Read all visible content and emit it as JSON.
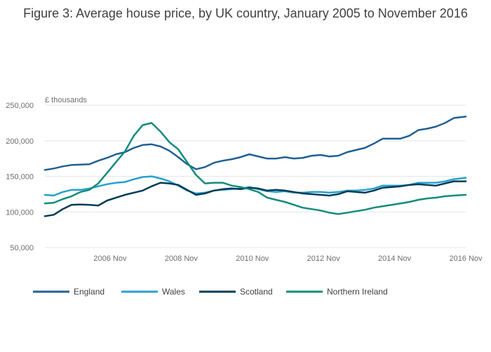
{
  "chart_data": {
    "type": "line",
    "title": "Figure 3: Average house price, by UK country, January 2005 to November 2016",
    "unit_label": "£ thousands",
    "y_ticks": [
      50000,
      100000,
      150000,
      200000,
      250000
    ],
    "y_tick_labels": [
      "50,000",
      "100,000",
      "150,000",
      "200,000",
      "250,000"
    ],
    "ylim": [
      50000,
      250000
    ],
    "x_ticks": [
      "2006-11",
      "2008-11",
      "2010-11",
      "2012-11",
      "2014-11",
      "2016-11"
    ],
    "x_tick_labels": [
      "2006 Nov",
      "2008 Nov",
      "2010 Nov",
      "2012 Nov",
      "2014 Nov",
      "2016 Nov"
    ],
    "x_range": [
      "2005-01",
      "2016-11"
    ],
    "grid": "horizontal",
    "legend_position": "bottom",
    "series": [
      {
        "name": "England",
        "color": "#206095",
        "points": [
          [
            "2005-01",
            159000
          ],
          [
            "2005-04",
            161000
          ],
          [
            "2005-07",
            164000
          ],
          [
            "2005-10",
            166000
          ],
          [
            "2006-01",
            166500
          ],
          [
            "2006-04",
            167000
          ],
          [
            "2006-07",
            172000
          ],
          [
            "2006-10",
            176000
          ],
          [
            "2007-01",
            181000
          ],
          [
            "2007-04",
            184000
          ],
          [
            "2007-07",
            190000
          ],
          [
            "2007-10",
            194000
          ],
          [
            "2008-01",
            195000
          ],
          [
            "2008-04",
            192000
          ],
          [
            "2008-07",
            186000
          ],
          [
            "2008-10",
            177000
          ],
          [
            "2009-01",
            167000
          ],
          [
            "2009-04",
            160000
          ],
          [
            "2009-07",
            163000
          ],
          [
            "2009-10",
            169000
          ],
          [
            "2010-01",
            172000
          ],
          [
            "2010-04",
            174000
          ],
          [
            "2010-07",
            177000
          ],
          [
            "2010-10",
            181000
          ],
          [
            "2011-01",
            178000
          ],
          [
            "2011-04",
            175000
          ],
          [
            "2011-07",
            175000
          ],
          [
            "2011-10",
            177000
          ],
          [
            "2012-01",
            175000
          ],
          [
            "2012-04",
            176000
          ],
          [
            "2012-07",
            179000
          ],
          [
            "2012-10",
            180000
          ],
          [
            "2013-01",
            178000
          ],
          [
            "2013-04",
            179000
          ],
          [
            "2013-07",
            184000
          ],
          [
            "2013-10",
            187000
          ],
          [
            "2014-01",
            190000
          ],
          [
            "2014-04",
            196000
          ],
          [
            "2014-07",
            203000
          ],
          [
            "2014-10",
            203000
          ],
          [
            "2015-01",
            203000
          ],
          [
            "2015-04",
            207000
          ],
          [
            "2015-07",
            215000
          ],
          [
            "2015-10",
            217000
          ],
          [
            "2016-01",
            220000
          ],
          [
            "2016-04",
            225000
          ],
          [
            "2016-07",
            232000
          ],
          [
            "2016-11",
            234000
          ]
        ]
      },
      {
        "name": "Wales",
        "color": "#27a0cc",
        "points": [
          [
            "2005-01",
            124000
          ],
          [
            "2005-04",
            123000
          ],
          [
            "2005-07",
            128000
          ],
          [
            "2005-10",
            131000
          ],
          [
            "2006-01",
            131000
          ],
          [
            "2006-04",
            133000
          ],
          [
            "2006-07",
            136000
          ],
          [
            "2006-10",
            139000
          ],
          [
            "2007-01",
            141000
          ],
          [
            "2007-04",
            142000
          ],
          [
            "2007-07",
            146000
          ],
          [
            "2007-10",
            149000
          ],
          [
            "2008-01",
            150000
          ],
          [
            "2008-04",
            147000
          ],
          [
            "2008-07",
            143000
          ],
          [
            "2008-10",
            137000
          ],
          [
            "2009-01",
            130000
          ],
          [
            "2009-04",
            126000
          ],
          [
            "2009-07",
            127000
          ],
          [
            "2009-10",
            130000
          ],
          [
            "2010-01",
            131000
          ],
          [
            "2010-04",
            132000
          ],
          [
            "2010-07",
            133000
          ],
          [
            "2010-10",
            135000
          ],
          [
            "2011-01",
            132000
          ],
          [
            "2011-04",
            129000
          ],
          [
            "2011-07",
            128000
          ],
          [
            "2011-10",
            129000
          ],
          [
            "2012-01",
            127000
          ],
          [
            "2012-04",
            127000
          ],
          [
            "2012-07",
            128000
          ],
          [
            "2012-10",
            128000
          ],
          [
            "2013-01",
            127000
          ],
          [
            "2013-04",
            128000
          ],
          [
            "2013-07",
            130000
          ],
          [
            "2013-10",
            130000
          ],
          [
            "2014-01",
            131000
          ],
          [
            "2014-04",
            133000
          ],
          [
            "2014-07",
            137000
          ],
          [
            "2014-10",
            137000
          ],
          [
            "2015-01",
            137000
          ],
          [
            "2015-04",
            138000
          ],
          [
            "2015-07",
            141000
          ],
          [
            "2015-10",
            141000
          ],
          [
            "2016-01",
            141000
          ],
          [
            "2016-04",
            143000
          ],
          [
            "2016-07",
            146000
          ],
          [
            "2016-11",
            148000
          ]
        ]
      },
      {
        "name": "Scotland",
        "color": "#003c57",
        "points": [
          [
            "2005-01",
            94000
          ],
          [
            "2005-04",
            96000
          ],
          [
            "2005-07",
            104000
          ],
          [
            "2005-10",
            110000
          ],
          [
            "2006-01",
            110500
          ],
          [
            "2006-04",
            110000
          ],
          [
            "2006-07",
            109000
          ],
          [
            "2006-10",
            116000
          ],
          [
            "2007-01",
            120000
          ],
          [
            "2007-04",
            124000
          ],
          [
            "2007-07",
            127000
          ],
          [
            "2007-10",
            130000
          ],
          [
            "2008-01",
            136000
          ],
          [
            "2008-04",
            141000
          ],
          [
            "2008-07",
            140000
          ],
          [
            "2008-10",
            138000
          ],
          [
            "2009-01",
            131000
          ],
          [
            "2009-04",
            124000
          ],
          [
            "2009-07",
            126000
          ],
          [
            "2009-10",
            130000
          ],
          [
            "2010-01",
            132000
          ],
          [
            "2010-04",
            133000
          ],
          [
            "2010-07",
            132000
          ],
          [
            "2010-10",
            134000
          ],
          [
            "2011-01",
            133000
          ],
          [
            "2011-04",
            130000
          ],
          [
            "2011-07",
            131000
          ],
          [
            "2011-10",
            130000
          ],
          [
            "2012-01",
            128000
          ],
          [
            "2012-04",
            126000
          ],
          [
            "2012-07",
            125000
          ],
          [
            "2012-10",
            124000
          ],
          [
            "2013-01",
            123000
          ],
          [
            "2013-04",
            125000
          ],
          [
            "2013-07",
            129000
          ],
          [
            "2013-10",
            128000
          ],
          [
            "2014-01",
            127000
          ],
          [
            "2014-04",
            130000
          ],
          [
            "2014-07",
            134000
          ],
          [
            "2014-10",
            135000
          ],
          [
            "2015-01",
            136000
          ],
          [
            "2015-04",
            138000
          ],
          [
            "2015-07",
            139000
          ],
          [
            "2015-10",
            138000
          ],
          [
            "2016-01",
            137000
          ],
          [
            "2016-04",
            140000
          ],
          [
            "2016-07",
            143000
          ],
          [
            "2016-11",
            143000
          ]
        ]
      },
      {
        "name": "Northern Ireland",
        "color": "#118c7b",
        "points": [
          [
            "2005-01",
            112000
          ],
          [
            "2005-04",
            113000
          ],
          [
            "2005-07",
            118000
          ],
          [
            "2005-10",
            122000
          ],
          [
            "2006-01",
            128000
          ],
          [
            "2006-04",
            131000
          ],
          [
            "2006-07",
            140000
          ],
          [
            "2006-10",
            155000
          ],
          [
            "2007-01",
            170000
          ],
          [
            "2007-04",
            185000
          ],
          [
            "2007-07",
            207000
          ],
          [
            "2007-10",
            222000
          ],
          [
            "2008-01",
            225000
          ],
          [
            "2008-04",
            213000
          ],
          [
            "2008-07",
            198000
          ],
          [
            "2008-10",
            188000
          ],
          [
            "2009-01",
            170000
          ],
          [
            "2009-04",
            152000
          ],
          [
            "2009-07",
            140000
          ],
          [
            "2009-10",
            141000
          ],
          [
            "2010-01",
            141000
          ],
          [
            "2010-04",
            137000
          ],
          [
            "2010-07",
            135000
          ],
          [
            "2010-10",
            132000
          ],
          [
            "2011-01",
            128000
          ],
          [
            "2011-04",
            120000
          ],
          [
            "2011-07",
            117000
          ],
          [
            "2011-10",
            114000
          ],
          [
            "2012-01",
            110000
          ],
          [
            "2012-04",
            106000
          ],
          [
            "2012-07",
            104000
          ],
          [
            "2012-10",
            102000
          ],
          [
            "2013-01",
            99000
          ],
          [
            "2013-04",
            97000
          ],
          [
            "2013-07",
            99000
          ],
          [
            "2013-10",
            101000
          ],
          [
            "2014-01",
            103000
          ],
          [
            "2014-04",
            106000
          ],
          [
            "2014-07",
            108000
          ],
          [
            "2014-10",
            110000
          ],
          [
            "2015-01",
            112000
          ],
          [
            "2015-04",
            114000
          ],
          [
            "2015-07",
            117000
          ],
          [
            "2015-10",
            119000
          ],
          [
            "2016-01",
            120000
          ],
          [
            "2016-04",
            122000
          ],
          [
            "2016-07",
            123000
          ],
          [
            "2016-11",
            124000
          ]
        ]
      }
    ]
  }
}
